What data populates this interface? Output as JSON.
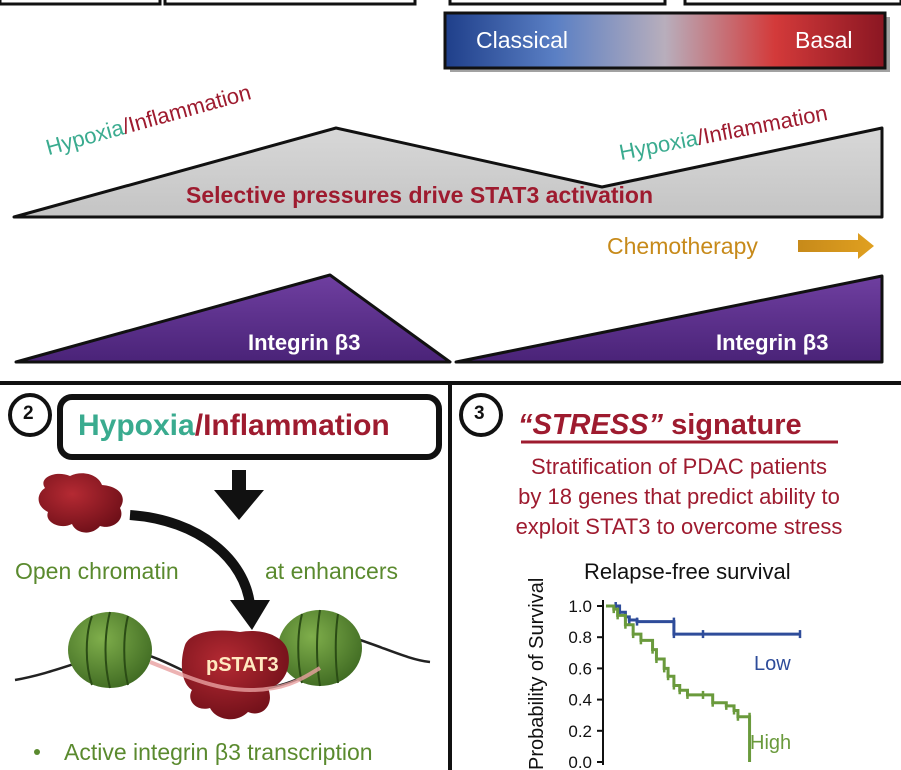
{
  "top_panel": {
    "gradient_bar": {
      "left_label": "Classical",
      "right_label": "Basal",
      "colors": [
        "#1f3f8a",
        "#5a7fc4",
        "#b8aebc",
        "#d33a3a",
        "#8a1622"
      ]
    },
    "left_pressure": {
      "part1": "Hypoxia",
      "separator": "/",
      "part2": "Inflammation"
    },
    "right_pressure": {
      "part1": "Hypoxia",
      "separator": "/",
      "part2": "Inflammation"
    },
    "stat3_banner": "Selective pressures drive STAT3 activation",
    "chemo_label": "Chemotherapy",
    "integrin_left": "Integrin β3",
    "integrin_right": "Integrin β3"
  },
  "panel2": {
    "number": "2",
    "title_part1": "Hypoxia",
    "title_separator": "/",
    "title_part2": "Inflammation",
    "label_left": "Open chromatin",
    "label_right": "at enhancers",
    "protein_label": "pSTAT3",
    "bullet_text": "Active integrin β3 transcription"
  },
  "panel3": {
    "number": "3",
    "title_quoted": "“STRESS”",
    "title_rest": "signature",
    "description_lines": [
      "Stratification of PDAC patients",
      "by 18 genes that predict ability to",
      "exploit STAT3 to overcome stress"
    ]
  },
  "chart_data": {
    "type": "line",
    "title": "Relapse-free survival",
    "ylabel": "Probability of Survival",
    "ylim": [
      0,
      1.0
    ],
    "y_ticks": [
      "1.0",
      "0.8",
      "0.6",
      "0.4",
      "0.2",
      "0.0"
    ],
    "series": [
      {
        "name": "Low",
        "color": "#2e4c9a",
        "points": [
          [
            0,
            1.0
          ],
          [
            0.05,
            1.0
          ],
          [
            0.07,
            0.96
          ],
          [
            0.1,
            0.93
          ],
          [
            0.12,
            0.91
          ],
          [
            0.16,
            0.9
          ],
          [
            0.35,
            0.9
          ],
          [
            0.35,
            0.82
          ],
          [
            0.5,
            0.82
          ],
          [
            1.0,
            0.82
          ]
        ]
      },
      {
        "name": "High",
        "color": "#6a9a3c",
        "points": [
          [
            0,
            1.0
          ],
          [
            0.04,
            0.98
          ],
          [
            0.06,
            0.94
          ],
          [
            0.1,
            0.88
          ],
          [
            0.14,
            0.82
          ],
          [
            0.18,
            0.78
          ],
          [
            0.24,
            0.72
          ],
          [
            0.26,
            0.66
          ],
          [
            0.3,
            0.6
          ],
          [
            0.32,
            0.55
          ],
          [
            0.35,
            0.49
          ],
          [
            0.38,
            0.46
          ],
          [
            0.42,
            0.43
          ],
          [
            0.5,
            0.43
          ],
          [
            0.55,
            0.38
          ],
          [
            0.62,
            0.36
          ],
          [
            0.66,
            0.33
          ],
          [
            0.68,
            0.29
          ],
          [
            0.74,
            0.29
          ],
          [
            0.74,
            0.0
          ]
        ]
      }
    ]
  }
}
